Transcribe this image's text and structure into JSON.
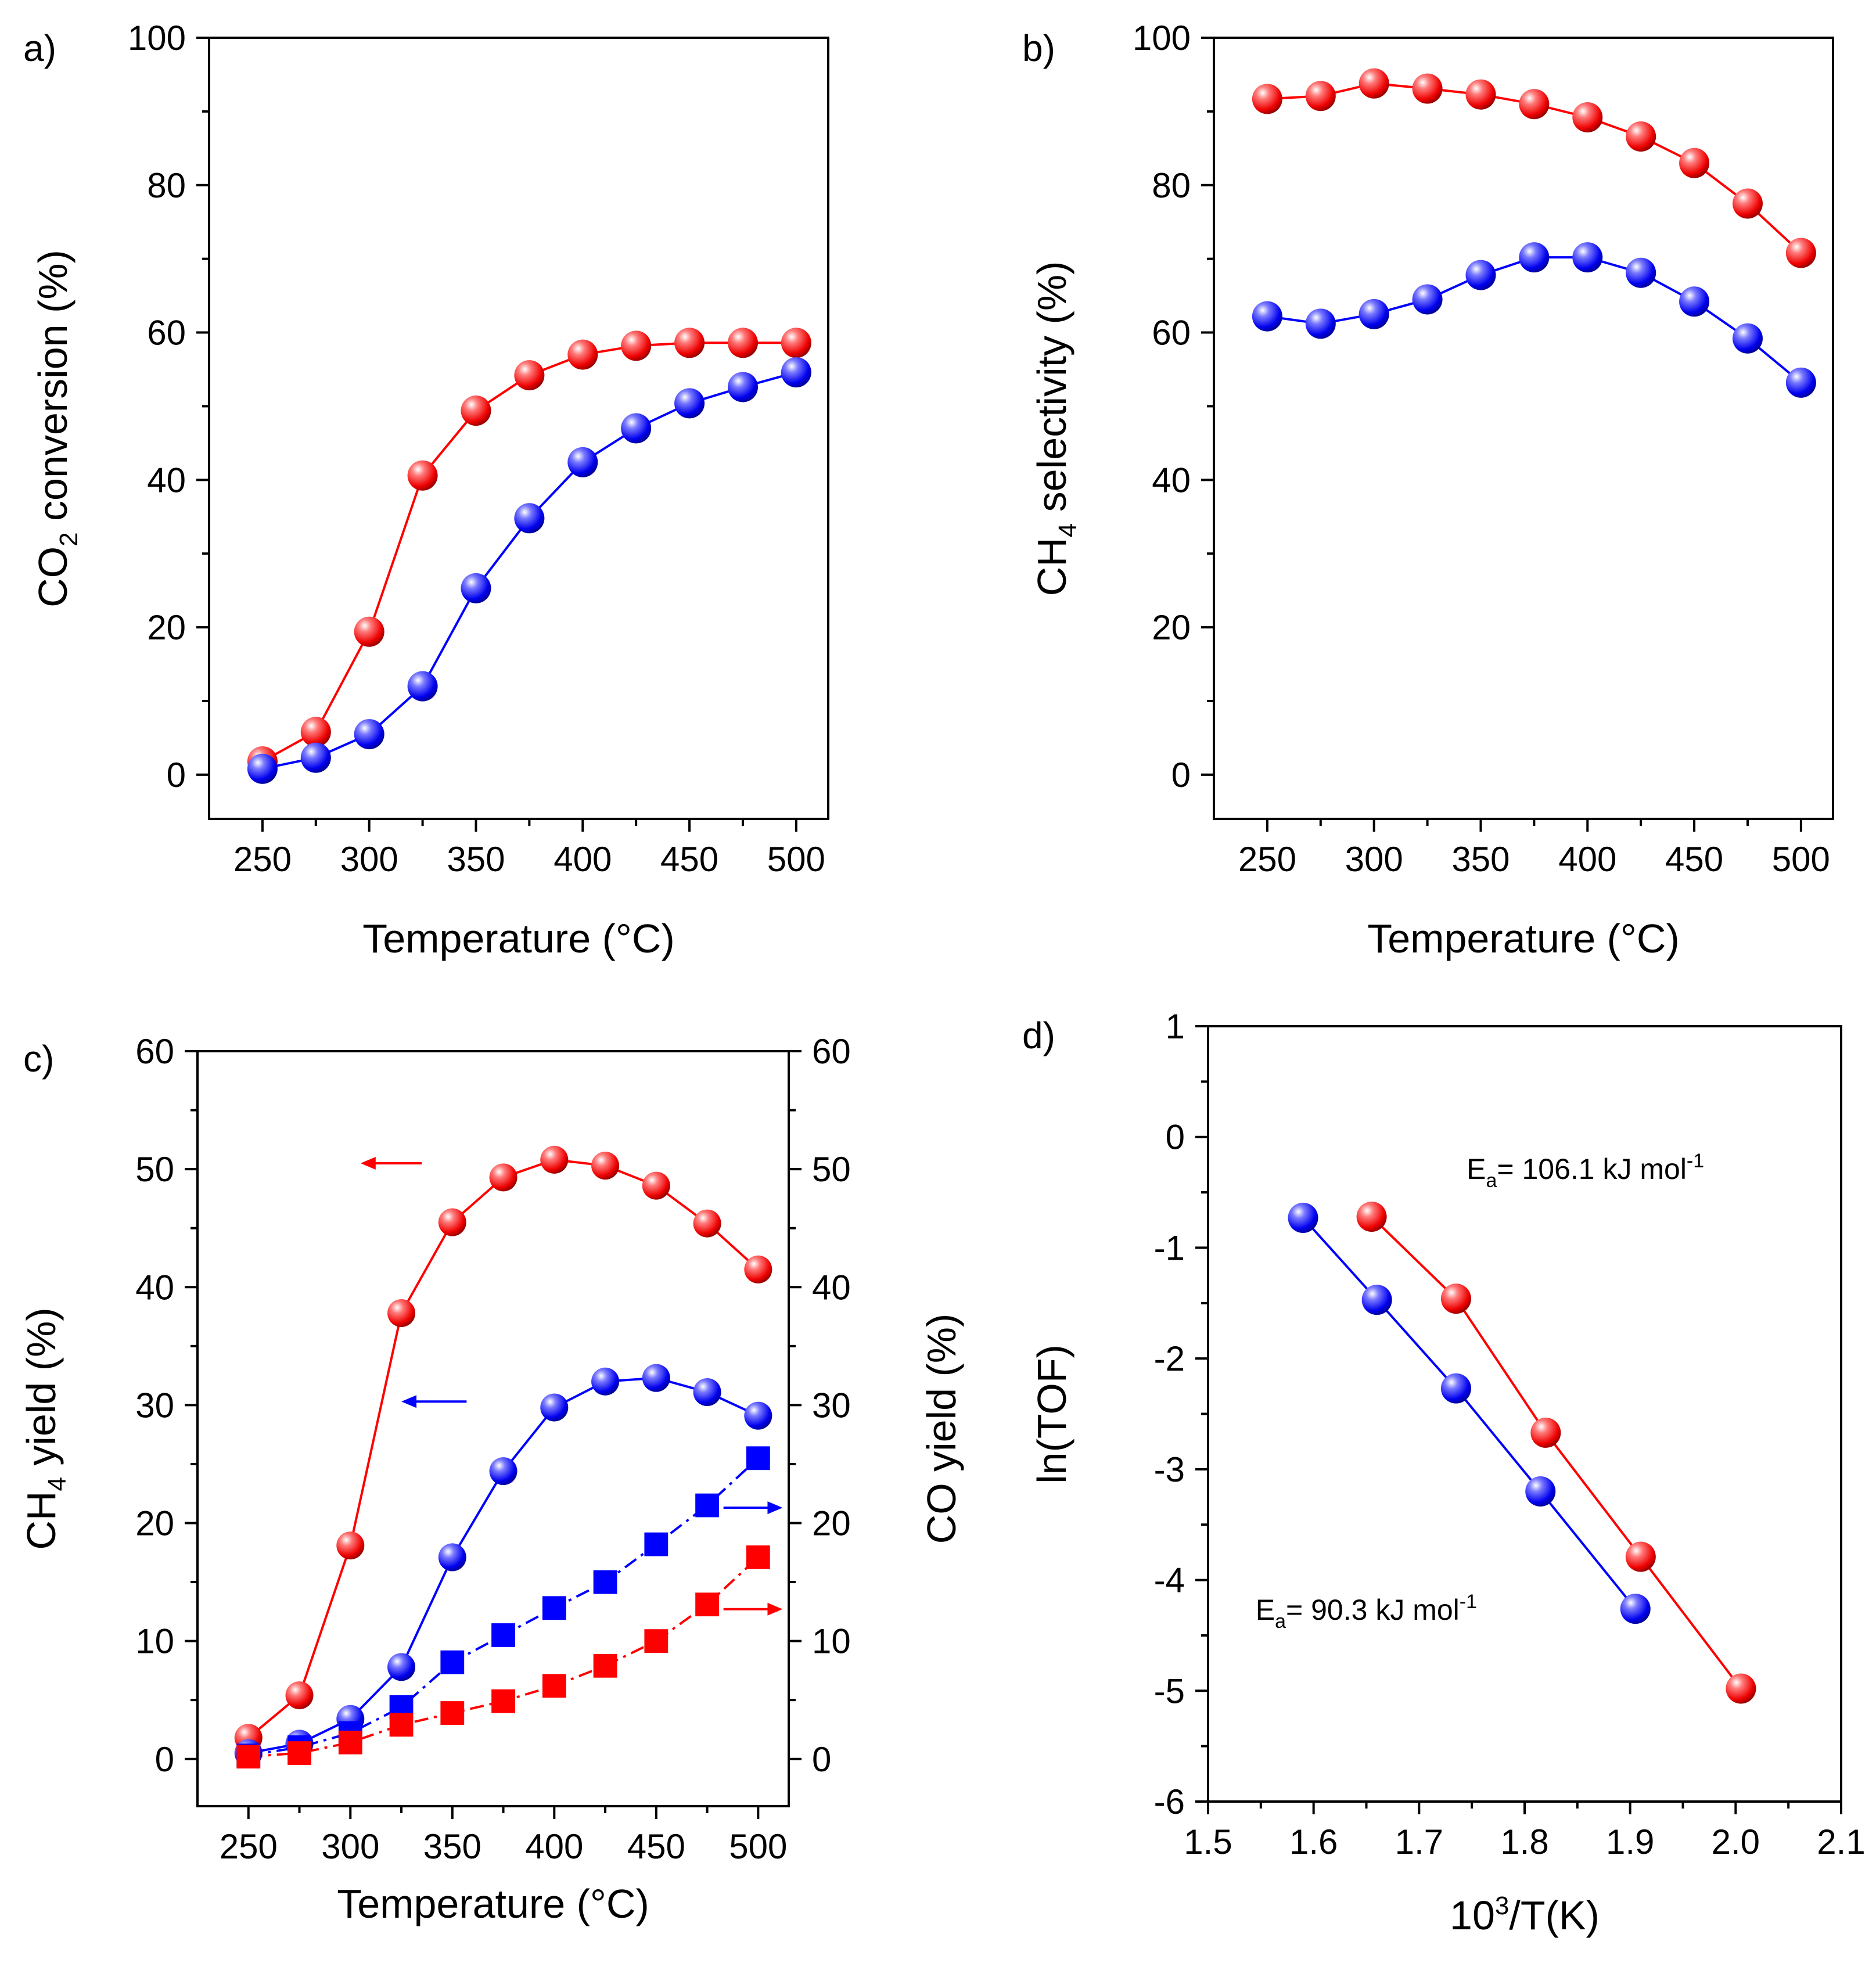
{
  "chart_data": [
    {
      "id": "a",
      "panel_label": "a)",
      "type": "line",
      "xlabel": "Temperature (°C)",
      "ylabel_parts": [
        "CO",
        "2",
        " conversion (%)"
      ],
      "xlim": [
        225,
        515
      ],
      "ylim": [
        -6,
        100
      ],
      "xticks": [
        250,
        300,
        350,
        400,
        450,
        500
      ],
      "yticks": [
        0,
        20,
        40,
        60,
        80,
        100
      ],
      "x": [
        250,
        275,
        300,
        325,
        350,
        375,
        400,
        425,
        450,
        475,
        500
      ],
      "series": [
        {
          "name": "red",
          "color": "#ff0000",
          "marker": "sphere",
          "line": "solid",
          "values": [
            1.8,
            5.8,
            19.4,
            40.6,
            49.4,
            54.2,
            57.0,
            58.2,
            58.6,
            58.6,
            58.6
          ]
        },
        {
          "name": "blue",
          "color": "#0000ff",
          "marker": "sphere",
          "line": "solid",
          "values": [
            0.8,
            2.3,
            5.5,
            12.0,
            25.3,
            34.8,
            42.4,
            47.0,
            50.4,
            52.6,
            54.6
          ]
        }
      ]
    },
    {
      "id": "b",
      "panel_label": "b)",
      "type": "line",
      "xlabel": "Temperature (°C)",
      "ylabel_parts": [
        "CH",
        "4",
        " selectivity (%)"
      ],
      "xlim": [
        225,
        515
      ],
      "ylim": [
        -6,
        100
      ],
      "xticks": [
        250,
        300,
        350,
        400,
        450,
        500
      ],
      "yticks": [
        0,
        20,
        40,
        60,
        80,
        100
      ],
      "x": [
        250,
        275,
        300,
        325,
        350,
        375,
        400,
        425,
        450,
        475,
        500
      ],
      "series": [
        {
          "name": "red",
          "color": "#ff0000",
          "marker": "sphere",
          "line": "solid",
          "values": [
            91.7,
            92.1,
            93.8,
            93.1,
            92.3,
            91.0,
            89.2,
            86.6,
            83.0,
            77.5,
            70.8
          ]
        },
        {
          "name": "blue",
          "color": "#0000ff",
          "marker": "sphere",
          "line": "solid",
          "values": [
            62.2,
            61.2,
            62.5,
            64.5,
            67.8,
            70.2,
            70.2,
            68.1,
            64.2,
            59.2,
            53.2
          ]
        }
      ]
    },
    {
      "id": "c",
      "panel_label": "c)",
      "type": "line",
      "xlabel": "Temperature (°C)",
      "ylabel_parts": [
        "CH",
        "4",
        " yield (%)"
      ],
      "ylabel_right": "CO yield (%)",
      "xlim": [
        225,
        515
      ],
      "ylim": [
        -4,
        60
      ],
      "xticks": [
        250,
        300,
        350,
        400,
        450,
        500
      ],
      "yticks": [
        0,
        10,
        20,
        30,
        40,
        50,
        60
      ],
      "x": [
        250,
        275,
        300,
        325,
        350,
        375,
        400,
        425,
        450,
        475,
        500
      ],
      "series": [
        {
          "name": "red CH4 yield",
          "color": "#ff0000",
          "marker": "sphere",
          "line": "solid",
          "axis": "left",
          "values": [
            1.8,
            5.4,
            18.1,
            37.8,
            45.5,
            49.3,
            50.8,
            50.3,
            48.6,
            45.4,
            41.5
          ]
        },
        {
          "name": "blue CH4 yield",
          "color": "#0000ff",
          "marker": "sphere",
          "line": "solid",
          "axis": "left",
          "values": [
            0.5,
            1.3,
            3.4,
            7.8,
            17.1,
            24.4,
            29.8,
            32.0,
            32.3,
            31.1,
            29.1
          ]
        },
        {
          "name": "blue CO yield",
          "color": "#0000ff",
          "marker": "square",
          "line": "dashdot",
          "axis": "right",
          "values": [
            0.3,
            1.0,
            2.2,
            4.4,
            8.2,
            10.5,
            12.8,
            15.0,
            18.2,
            21.5,
            25.5
          ]
        },
        {
          "name": "red CO yield",
          "color": "#ff0000",
          "marker": "square",
          "line": "dashdot",
          "axis": "right",
          "values": [
            0.2,
            0.5,
            1.4,
            2.9,
            3.9,
            4.9,
            6.2,
            7.9,
            10.0,
            13.1,
            17.1
          ]
        }
      ],
      "arrows": [
        {
          "color": "#ff0000",
          "direction": "left",
          "x": [
            335,
            305
          ],
          "y": 50.5
        },
        {
          "color": "#0000ff",
          "direction": "left",
          "x": [
            357,
            325
          ],
          "y": 30.3
        },
        {
          "color": "#0000ff",
          "direction": "right",
          "x": [
            483,
            512
          ],
          "y": 21.3
        },
        {
          "color": "#ff0000",
          "direction": "right",
          "x": [
            483,
            512
          ],
          "y": 12.7
        }
      ]
    },
    {
      "id": "d",
      "panel_label": "d)",
      "type": "scatter",
      "xlabel_parts": [
        "10",
        "3",
        "/T(K)"
      ],
      "ylabel": "ln(TOF)",
      "xlim": [
        1.5,
        2.1
      ],
      "ylim": [
        -6,
        1
      ],
      "xticks": [
        1.5,
        1.6,
        1.7,
        1.8,
        1.9,
        2.0,
        2.1
      ],
      "xticklabels": [
        "1.5",
        "1.6",
        "1.7",
        "1.8",
        "1.9",
        "2.0",
        "2.1"
      ],
      "yticks": [
        -6,
        -5,
        -4,
        -3,
        -2,
        -1,
        0,
        1
      ],
      "series": [
        {
          "name": "red",
          "color": "#ff0000",
          "marker": "sphere",
          "line": "solid",
          "x": [
            1.655,
            1.735,
            1.82,
            1.91,
            2.005
          ],
          "values": [
            -0.72,
            -1.46,
            -2.67,
            -3.79,
            -4.98
          ]
        },
        {
          "name": "blue",
          "color": "#0000ff",
          "marker": "sphere",
          "line": "solid",
          "x": [
            1.59,
            1.66,
            1.735,
            1.815,
            1.905
          ],
          "values": [
            -0.73,
            -1.47,
            -2.27,
            -3.2,
            -4.26
          ]
        }
      ],
      "annotations": [
        {
          "prefix": "E",
          "sub": "a",
          "text": "= 106.1 kJ mol",
          "sup": "-1",
          "x": 1.745,
          "y": -0.38
        },
        {
          "prefix": "E",
          "sub": "a",
          "text": "= 90.3 kJ mol",
          "sup": "-1",
          "x": 1.545,
          "y": -4.36
        }
      ]
    }
  ]
}
